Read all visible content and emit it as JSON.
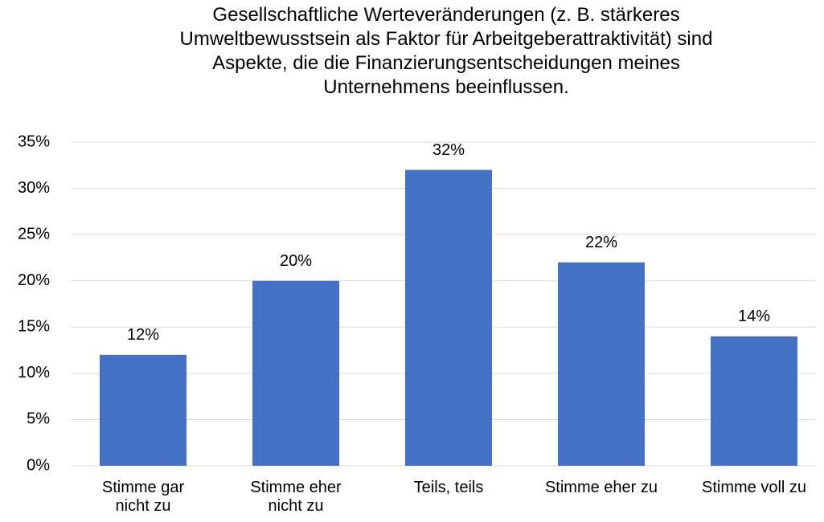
{
  "chart_data": {
    "type": "bar",
    "title": "Gesellschaftliche Werteveränderungen (z. B. stärkeres\nUmweltbewusstsein als Faktor für Arbeitgeberattraktivität) sind\nAspekte, die die Finanzierungsentscheidungen meines\nUnternehmens beeinflussen.",
    "categories": [
      "Stimme gar\nnicht zu",
      "Stimme eher\nnicht zu",
      "Teils, teils",
      "Stimme eher zu",
      "Stimme voll zu"
    ],
    "values": [
      12,
      20,
      32,
      22,
      14
    ],
    "value_labels": [
      "12%",
      "20%",
      "32%",
      "22%",
      "14%"
    ],
    "color": "#4472c4",
    "ylim": [
      0,
      35
    ],
    "yticks": [
      {
        "value": 0,
        "label": "0%"
      },
      {
        "value": 5,
        "label": "5%"
      },
      {
        "value": 10,
        "label": "10%"
      },
      {
        "value": 15,
        "label": "15%"
      },
      {
        "value": 20,
        "label": "20%"
      },
      {
        "value": 25,
        "label": "25%"
      },
      {
        "value": 30,
        "label": "30%"
      },
      {
        "value": 35,
        "label": "35%"
      }
    ],
    "grid": true
  }
}
